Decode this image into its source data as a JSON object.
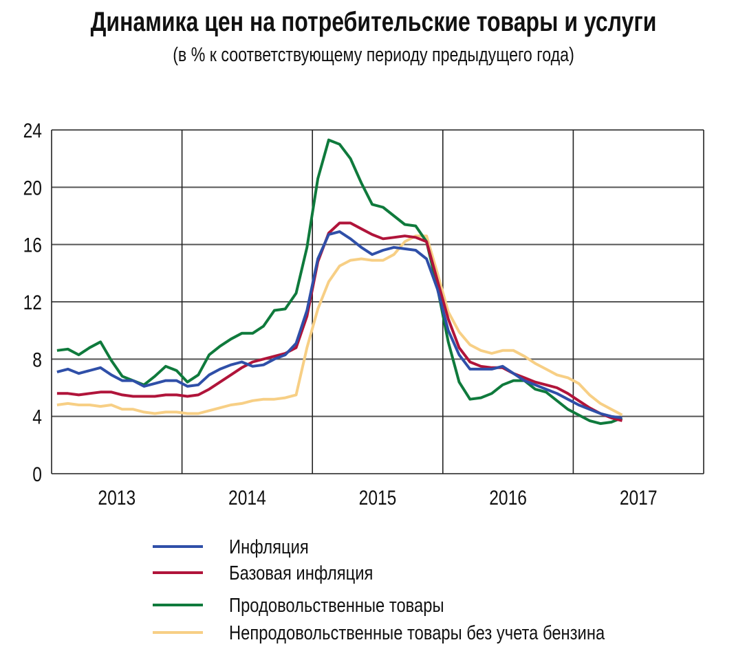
{
  "chart_data": {
    "type": "line",
    "title": "Динамика цен на потребительские товары и услуги",
    "subtitle": "(в % к соответствующему периоду предыдущего года)",
    "xlabel": "",
    "ylabel": "",
    "ylim": [
      0,
      24
    ],
    "yticks": [
      "0",
      "4",
      "8",
      "12",
      "16",
      "20",
      "24"
    ],
    "xticks": [
      "2013",
      "2014",
      "2015",
      "2016",
      "2017"
    ],
    "x_range": [
      "Jan 2013",
      "May 2017"
    ],
    "frequency": "monthly",
    "grid": true,
    "legend_position": "bottom",
    "series": [
      {
        "name": "Инфляция",
        "color": "#2f4fa8",
        "values": [
          7.1,
          7.3,
          7.0,
          7.2,
          7.4,
          6.9,
          6.5,
          6.5,
          6.1,
          6.3,
          6.5,
          6.5,
          6.1,
          6.2,
          6.9,
          7.3,
          7.6,
          7.8,
          7.5,
          7.6,
          8.0,
          8.3,
          9.1,
          11.4,
          15.0,
          16.7,
          16.9,
          16.4,
          15.8,
          15.3,
          15.6,
          15.8,
          15.7,
          15.6,
          15.0,
          12.9,
          10.0,
          8.3,
          7.3,
          7.3,
          7.3,
          7.5,
          7.0,
          6.5,
          6.2,
          5.9,
          5.6,
          5.2,
          4.8,
          4.5,
          4.2,
          4.0,
          3.9
        ]
      },
      {
        "name": "Базовая инфляция",
        "color": "#b0143a",
        "values": [
          5.6,
          5.6,
          5.5,
          5.6,
          5.7,
          5.7,
          5.5,
          5.4,
          5.4,
          5.4,
          5.5,
          5.5,
          5.4,
          5.5,
          5.9,
          6.4,
          6.9,
          7.4,
          7.8,
          8.0,
          8.2,
          8.4,
          8.8,
          11.0,
          14.8,
          16.8,
          17.5,
          17.5,
          17.1,
          16.7,
          16.4,
          16.5,
          16.6,
          16.5,
          16.2,
          13.5,
          10.8,
          8.8,
          7.8,
          7.5,
          7.4,
          7.4,
          7.0,
          6.7,
          6.4,
          6.2,
          6.0,
          5.6,
          5.1,
          4.6,
          4.2,
          3.9,
          3.7
        ]
      },
      {
        "name": "Продовольственные товары",
        "color": "#0f7a3c",
        "values": [
          8.6,
          8.7,
          8.3,
          8.8,
          9.2,
          7.9,
          6.8,
          6.5,
          6.2,
          6.8,
          7.5,
          7.2,
          6.4,
          6.9,
          8.3,
          8.9,
          9.4,
          9.8,
          9.8,
          10.3,
          11.4,
          11.5,
          12.6,
          15.8,
          20.6,
          23.3,
          23.0,
          22.0,
          20.3,
          18.8,
          18.6,
          18.0,
          17.4,
          17.3,
          16.2,
          13.0,
          9.2,
          6.4,
          5.2,
          5.3,
          5.6,
          6.2,
          6.5,
          6.5,
          5.9,
          5.7,
          5.1,
          4.5,
          4.1,
          3.7,
          3.5,
          3.6,
          3.9
        ]
      },
      {
        "name": "Непродовольственные товары без учета бензина",
        "color": "#f7cf85",
        "values": [
          4.8,
          4.9,
          4.8,
          4.8,
          4.7,
          4.8,
          4.5,
          4.5,
          4.3,
          4.2,
          4.3,
          4.3,
          4.2,
          4.2,
          4.4,
          4.6,
          4.8,
          4.9,
          5.1,
          5.2,
          5.2,
          5.3,
          5.5,
          8.8,
          11.5,
          13.4,
          14.5,
          14.9,
          15.0,
          14.9,
          14.9,
          15.3,
          16.2,
          16.6,
          16.6,
          14.0,
          11.3,
          9.9,
          9.0,
          8.6,
          8.4,
          8.6,
          8.6,
          8.2,
          7.7,
          7.3,
          6.9,
          6.7,
          6.3,
          5.5,
          4.9,
          4.5,
          4.1
        ]
      }
    ]
  }
}
